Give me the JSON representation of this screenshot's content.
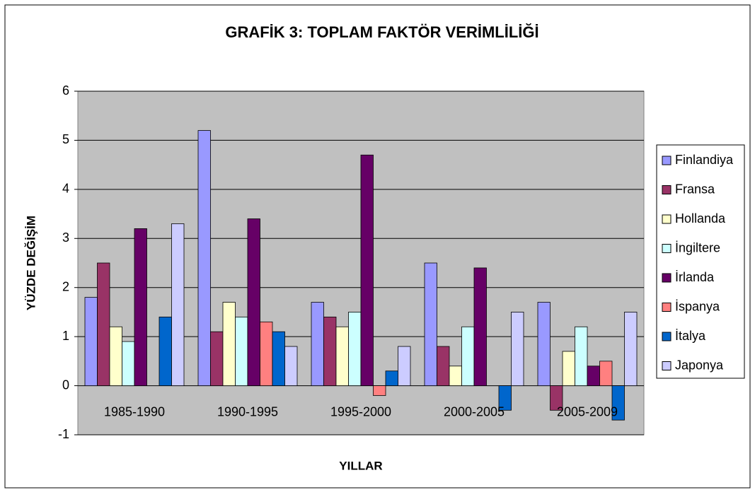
{
  "chart_data": {
    "type": "bar",
    "title": "GRAFİK 3: TOPLAM FAKTÖR VERİMLİLİĞİ",
    "xlabel": "YILLAR",
    "ylabel": "YÜZDE DEĞİŞİM",
    "categories": [
      "1985-1990",
      "1990-1995",
      "1995-2000",
      "2000-2005",
      "2005-2009"
    ],
    "series": [
      {
        "name": "Finlandiya",
        "color": "#9999ff",
        "values": [
          1.8,
          5.2,
          1.7,
          2.5,
          1.7
        ]
      },
      {
        "name": "Fransa",
        "color": "#993366",
        "values": [
          2.5,
          1.1,
          1.4,
          0.8,
          -0.5
        ]
      },
      {
        "name": "Hollanda",
        "color": "#ffffcc",
        "values": [
          1.2,
          1.7,
          1.2,
          0.4,
          0.7
        ]
      },
      {
        "name": "İngiltere",
        "color": "#ccffff",
        "values": [
          0.9,
          1.4,
          1.5,
          1.2,
          1.2
        ]
      },
      {
        "name": "İrlanda",
        "color": "#660066",
        "values": [
          3.2,
          3.4,
          4.7,
          2.4,
          0.4
        ]
      },
      {
        "name": "İspanya",
        "color": "#ff8080",
        "values": [
          null,
          1.3,
          -0.2,
          null,
          0.5
        ]
      },
      {
        "name": "İtalya",
        "color": "#0066cc",
        "values": [
          1.4,
          1.1,
          0.3,
          -0.5,
          -0.7
        ]
      },
      {
        "name": "Japonya",
        "color": "#ccccff",
        "values": [
          3.3,
          0.8,
          0.8,
          1.5,
          1.5
        ]
      }
    ],
    "ylim": [
      -1,
      6
    ],
    "yticks": [
      -1,
      0,
      1,
      2,
      3,
      4,
      5,
      6
    ],
    "grid": true,
    "legend": "right"
  }
}
